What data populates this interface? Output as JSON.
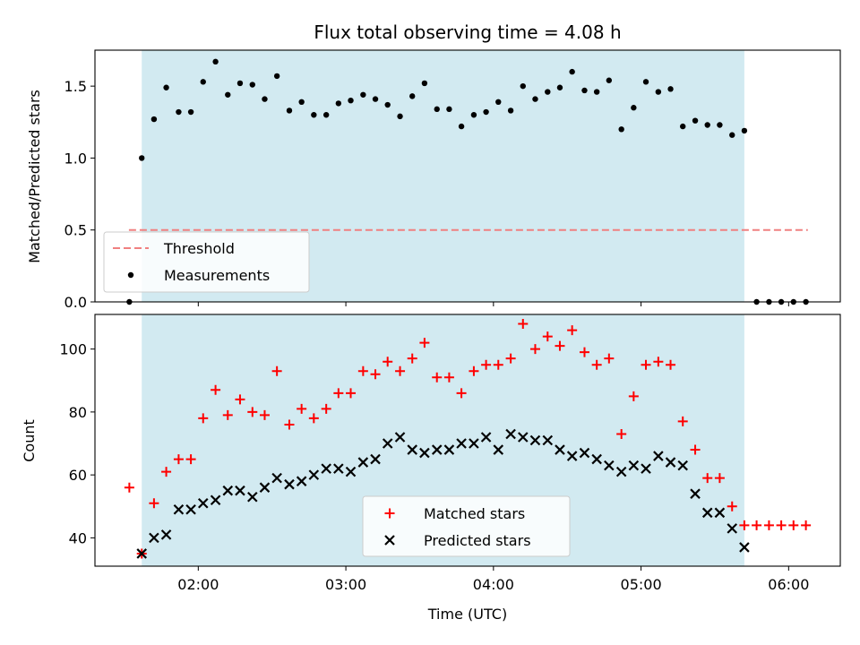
{
  "chart_data": [
    {
      "type": "scatter",
      "title": "Flux total observing time = 4.08 h",
      "xlabel": "",
      "ylabel": "Matched/Predicted stars",
      "xlim": [
        1.3,
        6.35
      ],
      "ylim": [
        0,
        1.75
      ],
      "yticks": [
        0.0,
        0.5,
        1.0,
        1.5
      ],
      "ytick_labels": [
        "0.0",
        "0.5",
        "1.0",
        "1.5"
      ],
      "xticks": [
        2,
        3,
        4,
        5,
        6
      ],
      "xtick_labels": [
        "",
        "",
        "",
        "",
        ""
      ],
      "shaded_region": [
        1.617,
        5.7
      ],
      "colors": {
        "shade": "#add8e6",
        "threshold": "#f08080",
        "points": "#000000"
      },
      "threshold": {
        "name": "Threshold",
        "y": 0.5,
        "x_range": [
          1.53,
          6.13
        ]
      },
      "legend": {
        "placement": "lower-left",
        "entries": [
          "Threshold",
          "Measurements"
        ]
      },
      "series": [
        {
          "name": "Measurements",
          "x": [
            1.533,
            1.617,
            1.7,
            1.783,
            1.867,
            1.95,
            2.033,
            2.117,
            2.2,
            2.283,
            2.367,
            2.45,
            2.533,
            2.617,
            2.7,
            2.783,
            2.867,
            2.95,
            3.033,
            3.117,
            3.2,
            3.283,
            3.367,
            3.45,
            3.533,
            3.617,
            3.7,
            3.783,
            3.867,
            3.95,
            4.033,
            4.117,
            4.2,
            4.283,
            4.367,
            4.45,
            4.533,
            4.617,
            4.7,
            4.783,
            4.867,
            4.95,
            5.033,
            5.117,
            5.2,
            5.283,
            5.367,
            5.45,
            5.533,
            5.617,
            5.7,
            5.783,
            5.867,
            5.95,
            6.033,
            6.117
          ],
          "y": [
            0.0,
            1.0,
            1.27,
            1.49,
            1.32,
            1.32,
            1.53,
            1.67,
            1.44,
            1.52,
            1.51,
            1.41,
            1.57,
            1.33,
            1.39,
            1.3,
            1.3,
            1.38,
            1.4,
            1.44,
            1.41,
            1.37,
            1.29,
            1.43,
            1.52,
            1.34,
            1.34,
            1.22,
            1.3,
            1.32,
            1.39,
            1.33,
            1.5,
            1.41,
            1.46,
            1.49,
            1.6,
            1.47,
            1.46,
            1.54,
            1.2,
            1.35,
            1.53,
            1.46,
            1.48,
            1.22,
            1.26,
            1.23,
            1.23,
            1.16,
            1.19,
            0.0,
            0.0,
            0.0,
            0.0,
            0.0
          ]
        }
      ]
    },
    {
      "type": "scatter",
      "title": "",
      "xlabel": "Time (UTC)",
      "ylabel": "Count",
      "xlim": [
        1.3,
        6.35
      ],
      "ylim": [
        31,
        111
      ],
      "yticks": [
        40,
        60,
        80,
        100
      ],
      "ytick_labels": [
        "40",
        "60",
        "80",
        "100"
      ],
      "xticks": [
        2,
        3,
        4,
        5,
        6
      ],
      "xtick_labels": [
        "02:00",
        "03:00",
        "04:00",
        "05:00",
        "06:00"
      ],
      "shaded_region": [
        1.617,
        5.7
      ],
      "colors": {
        "shade": "#add8e6",
        "matched": "#ff0000",
        "predicted": "#000000"
      },
      "legend": {
        "placement": "lower-center",
        "entries": [
          "Matched stars",
          "Predicted stars"
        ]
      },
      "series": [
        {
          "name": "Matched stars",
          "x": [
            1.533,
            1.617,
            1.7,
            1.783,
            1.867,
            1.95,
            2.033,
            2.117,
            2.2,
            2.283,
            2.367,
            2.45,
            2.533,
            2.617,
            2.7,
            2.783,
            2.867,
            2.95,
            3.033,
            3.117,
            3.2,
            3.283,
            3.367,
            3.45,
            3.533,
            3.617,
            3.7,
            3.783,
            3.867,
            3.95,
            4.033,
            4.117,
            4.2,
            4.283,
            4.367,
            4.45,
            4.533,
            4.617,
            4.7,
            4.783,
            4.867,
            4.95,
            5.033,
            5.117,
            5.2,
            5.283,
            5.367,
            5.45,
            5.533,
            5.617,
            5.7,
            5.783,
            5.867,
            5.95,
            6.033,
            6.117
          ],
          "y": [
            56,
            35,
            51,
            61,
            65,
            65,
            78,
            87,
            79,
            84,
            80,
            79,
            93,
            76,
            81,
            78,
            81,
            86,
            86,
            93,
            92,
            96,
            93,
            97,
            102,
            91,
            91,
            86,
            93,
            95,
            95,
            97,
            108,
            100,
            104,
            101,
            106,
            99,
            95,
            97,
            73,
            85,
            95,
            96,
            95,
            77,
            68,
            59,
            59,
            50,
            44,
            44,
            44,
            44,
            44,
            44
          ]
        },
        {
          "name": "Predicted stars",
          "x": [
            1.617,
            1.7,
            1.783,
            1.867,
            1.95,
            2.033,
            2.117,
            2.2,
            2.283,
            2.367,
            2.45,
            2.533,
            2.617,
            2.7,
            2.783,
            2.867,
            2.95,
            3.033,
            3.117,
            3.2,
            3.283,
            3.367,
            3.45,
            3.533,
            3.617,
            3.7,
            3.783,
            3.867,
            3.95,
            4.033,
            4.117,
            4.2,
            4.283,
            4.367,
            4.45,
            4.533,
            4.617,
            4.7,
            4.783,
            4.867,
            4.95,
            5.033,
            5.117,
            5.2,
            5.283,
            5.367,
            5.45,
            5.533,
            5.617,
            5.7
          ],
          "y": [
            35,
            40,
            41,
            49,
            49,
            51,
            52,
            55,
            55,
            53,
            56,
            59,
            57,
            58,
            60,
            62,
            62,
            61,
            64,
            65,
            70,
            72,
            68,
            67,
            68,
            68,
            70,
            70,
            72,
            68,
            73,
            72,
            71,
            71,
            68,
            66,
            67,
            65,
            63,
            61,
            63,
            62,
            66,
            64,
            63,
            54,
            48,
            48,
            43,
            37
          ]
        }
      ]
    }
  ]
}
